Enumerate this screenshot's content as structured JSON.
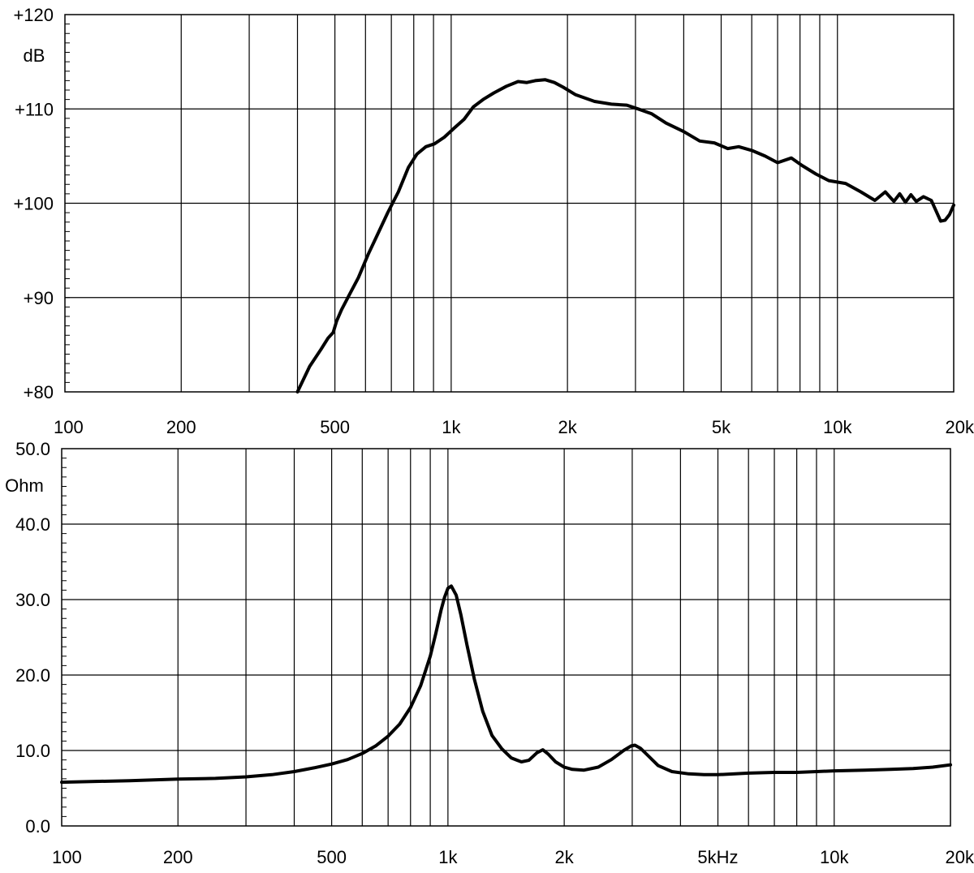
{
  "chart_data": [
    {
      "type": "line",
      "name": "frequency-response",
      "xscale": "log",
      "xlim": [
        100,
        20000
      ],
      "ylim": [
        80,
        120
      ],
      "ylabel": "dB",
      "xlabel": "",
      "grid": true,
      "x_ticks": [
        {
          "value": 100,
          "label": "100"
        },
        {
          "value": 200,
          "label": "200"
        },
        {
          "value": 500,
          "label": "500"
        },
        {
          "value": 1000,
          "label": "1k"
        },
        {
          "value": 2000,
          "label": "2k"
        },
        {
          "value": 5000,
          "label": "5k"
        },
        {
          "value": 10000,
          "label": "10k"
        },
        {
          "value": 20000,
          "label": "20k"
        }
      ],
      "y_ticks": [
        {
          "value": 80,
          "label": "+80"
        },
        {
          "value": 90,
          "label": "+90"
        },
        {
          "value": 100,
          "label": "+100"
        },
        {
          "value": 110,
          "label": "+110"
        },
        {
          "value": 120,
          "label": "+120"
        }
      ],
      "series": [
        {
          "x": [
            400,
            430,
            460,
            480,
            495,
            505,
            520,
            545,
            575,
            610,
            645,
            685,
            730,
            775,
            815,
            860,
            905,
            960,
            1020,
            1080,
            1140,
            1210,
            1290,
            1390,
            1490,
            1570,
            1650,
            1750,
            1850,
            1950,
            2100,
            2350,
            2600,
            2850,
            3050,
            3300,
            3600,
            4000,
            4400,
            4800,
            5200,
            5550,
            6000,
            6500,
            7000,
            7600,
            8100,
            8800,
            9500,
            10500,
            11500,
            12500,
            13300,
            14000,
            14500,
            15000,
            15500,
            16000,
            16700,
            17500,
            18000,
            18500,
            19000,
            19500,
            20000
          ],
          "y": [
            80.0,
            82.7,
            84.5,
            85.7,
            86.3,
            87.5,
            88.7,
            90.3,
            92.1,
            94.6,
            96.7,
            99.0,
            101.2,
            103.8,
            105.2,
            106.0,
            106.3,
            107.0,
            108.0,
            108.9,
            110.2,
            111.0,
            111.7,
            112.4,
            112.9,
            112.8,
            113.0,
            113.1,
            112.8,
            112.3,
            111.5,
            110.8,
            110.5,
            110.4,
            110.0,
            109.5,
            108.5,
            107.6,
            106.6,
            106.4,
            105.8,
            106.0,
            105.6,
            105.0,
            104.3,
            104.8,
            104.0,
            103.1,
            102.4,
            102.1,
            101.2,
            100.3,
            101.2,
            100.2,
            101.0,
            100.1,
            100.9,
            100.2,
            100.7,
            100.3,
            99.2,
            98.1,
            98.2,
            98.8,
            99.8
          ]
        }
      ]
    },
    {
      "type": "line",
      "name": "impedance",
      "xscale": "log",
      "xlim": [
        100,
        20000
      ],
      "ylim": [
        0,
        50
      ],
      "ylabel": "Ohm",
      "xlabel": "",
      "grid": true,
      "x_ticks": [
        {
          "value": 100,
          "label": "100"
        },
        {
          "value": 200,
          "label": "200"
        },
        {
          "value": 500,
          "label": "500"
        },
        {
          "value": 1000,
          "label": "1k"
        },
        {
          "value": 2000,
          "label": "2k"
        },
        {
          "value": 5000,
          "label": "5kHz"
        },
        {
          "value": 10000,
          "label": "10k"
        },
        {
          "value": 20000,
          "label": "20k"
        }
      ],
      "y_ticks": [
        {
          "value": 0,
          "label": "0.0"
        },
        {
          "value": 10,
          "label": "10.0"
        },
        {
          "value": 20,
          "label": "20.0"
        },
        {
          "value": 30,
          "label": "30.0"
        },
        {
          "value": 40,
          "label": "40.0"
        },
        {
          "value": 50,
          "label": "50.0"
        }
      ],
      "series": [
        {
          "x": [
            100,
            150,
            200,
            250,
            300,
            350,
            400,
            450,
            500,
            550,
            600,
            650,
            700,
            750,
            800,
            850,
            900,
            930,
            960,
            980,
            1000,
            1020,
            1050,
            1080,
            1120,
            1170,
            1230,
            1300,
            1380,
            1460,
            1550,
            1620,
            1700,
            1760,
            1820,
            1900,
            2000,
            2100,
            2250,
            2450,
            2650,
            2850,
            2980,
            3050,
            3150,
            3300,
            3500,
            3800,
            4200,
            4600,
            5000,
            6000,
            7000,
            8000,
            9000,
            10000,
            12000,
            14000,
            16000,
            18000,
            20000
          ],
          "y": [
            5.8,
            6.0,
            6.2,
            6.3,
            6.5,
            6.8,
            7.2,
            7.7,
            8.2,
            8.8,
            9.6,
            10.6,
            11.9,
            13.5,
            15.7,
            18.6,
            22.5,
            25.5,
            28.6,
            30.3,
            31.5,
            31.8,
            30.6,
            28.0,
            24.0,
            19.5,
            15.2,
            12.0,
            10.2,
            9.0,
            8.5,
            8.7,
            9.7,
            10.1,
            9.5,
            8.5,
            7.8,
            7.5,
            7.4,
            7.8,
            8.8,
            10.0,
            10.6,
            10.7,
            10.3,
            9.3,
            8.0,
            7.2,
            6.9,
            6.8,
            6.8,
            7.0,
            7.1,
            7.1,
            7.2,
            7.3,
            7.4,
            7.5,
            7.6,
            7.8,
            8.1
          ]
        }
      ]
    }
  ]
}
